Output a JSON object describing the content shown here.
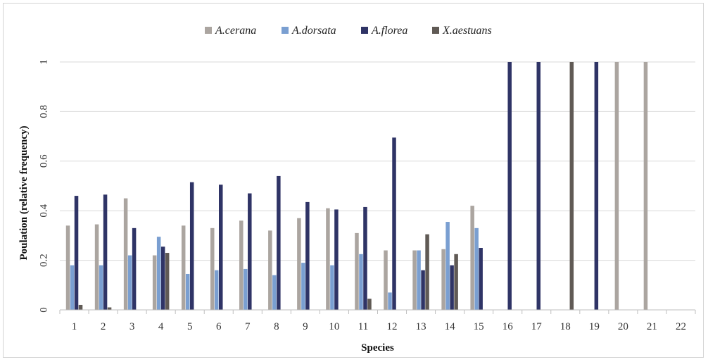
{
  "chart_data": {
    "type": "bar",
    "title": "",
    "xlabel": "Species",
    "ylabel": "Poulation (relative frequency)",
    "ylim": [
      0,
      1
    ],
    "yticks": [
      0,
      0.2,
      0.4,
      0.6,
      0.8,
      1
    ],
    "ytick_labels": [
      "0",
      "0.2",
      "0.4",
      "0.6",
      "0.8",
      "1"
    ],
    "grid": true,
    "legend_position": "top-center",
    "categories": [
      "1",
      "2",
      "3",
      "4",
      "5",
      "6",
      "7",
      "8",
      "9",
      "10",
      "11",
      "12",
      "13",
      "14",
      "15",
      "16",
      "17",
      "18",
      "19",
      "20",
      "21",
      "22"
    ],
    "series": [
      {
        "name": "A.cerana",
        "color": "#aba5a0",
        "values": [
          0.34,
          0.345,
          0.45,
          0.22,
          0.34,
          0.33,
          0.36,
          0.32,
          0.37,
          0.41,
          0.31,
          0.24,
          0.24,
          0.245,
          0.42,
          0,
          0,
          0,
          0,
          1,
          1,
          0
        ]
      },
      {
        "name": "A.dorsata",
        "color": "#7a9fd1",
        "values": [
          0.18,
          0.18,
          0.22,
          0.295,
          0.145,
          0.16,
          0.165,
          0.14,
          0.19,
          0.18,
          0.225,
          0.07,
          0.24,
          0.355,
          0.33,
          0,
          0,
          0,
          0,
          0,
          0,
          0
        ]
      },
      {
        "name": "A.florea",
        "color": "#2f3466",
        "values": [
          0.46,
          0.465,
          0.33,
          0.255,
          0.515,
          0.505,
          0.47,
          0.54,
          0.435,
          0.405,
          0.415,
          0.695,
          0.16,
          0.18,
          0.25,
          1,
          1,
          0,
          1,
          0,
          0,
          0
        ]
      },
      {
        "name": "X.aestuans",
        "color": "#605a55",
        "values": [
          0.02,
          0.01,
          0,
          0.23,
          0,
          0,
          0,
          0,
          0,
          0,
          0.045,
          0,
          0.305,
          0.225,
          0,
          0,
          0,
          1,
          0,
          0,
          0,
          0
        ]
      }
    ]
  }
}
